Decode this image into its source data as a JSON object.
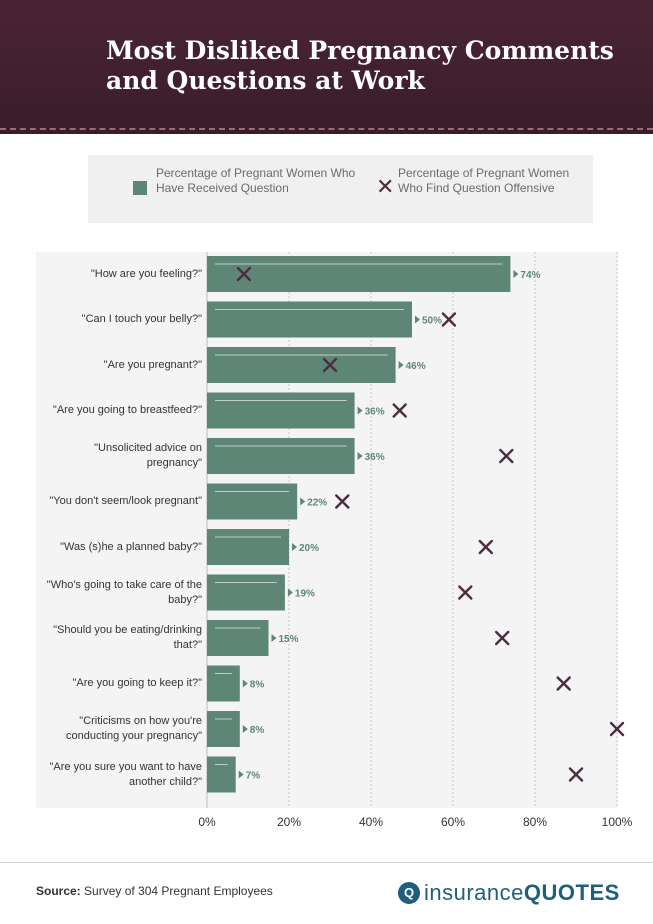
{
  "header": {
    "title": "Most Disliked Pregnancy Comments and Questions at Work"
  },
  "legend": {
    "received_label": "Percentage of Pregnant Women Who Have Received Question",
    "offensive_label": "Percentage of Pregnant Women Who Find Question Offensive",
    "offensive_marker": "✕"
  },
  "colors": {
    "header_bg": "#3a1d2a",
    "bar": "#5e8676",
    "marker": "#4d2c42",
    "bookmark": "#a36a8b",
    "label_text": "#5e8676"
  },
  "footer": {
    "source_label": "Source:",
    "source_text": "Survey of 304 Pregnant Employees",
    "logo_left": "insurance",
    "logo_right": "QUOTES"
  },
  "chart_data": {
    "type": "bar",
    "orientation": "horizontal",
    "categories": [
      "\"How are you feeling?\"",
      "\"Can I touch your belly?\"",
      "\"Are you pregnant?\"",
      "\"Are you going to breastfeed?\"",
      "\"Unsolicited advice on pregnancy\"",
      "\"You don't seem/look pregnant\"",
      "\"Was (s)he a planned baby?\"",
      "\"Who's going to take care of the baby?\"",
      "\"Should you be eating/drinking that?\"",
      "\"Are you going to keep it?\"",
      "\"Criticisms on how you're conducting your pregnancy\"",
      "\"Are you sure you want to have another child?\""
    ],
    "series": [
      {
        "name": "Percentage of Pregnant Women Who Have Received Question",
        "values": [
          74,
          50,
          46,
          36,
          36,
          22,
          20,
          19,
          15,
          8,
          8,
          7
        ],
        "data_labels": [
          "74%",
          "50%",
          "46%",
          "36%",
          "36%",
          "22%",
          "20%",
          "19%",
          "15%",
          "8%",
          "8%",
          "7%"
        ]
      },
      {
        "name": "Percentage of Pregnant Women Who Find Question Offensive",
        "values": [
          9,
          59,
          30,
          47,
          73,
          33,
          68,
          63,
          72,
          87,
          100,
          90
        ]
      }
    ],
    "xticks": [
      "0%",
      "20%",
      "40%",
      "60%",
      "80%",
      "100%"
    ],
    "xlim": [
      0,
      100
    ],
    "grid": true
  }
}
